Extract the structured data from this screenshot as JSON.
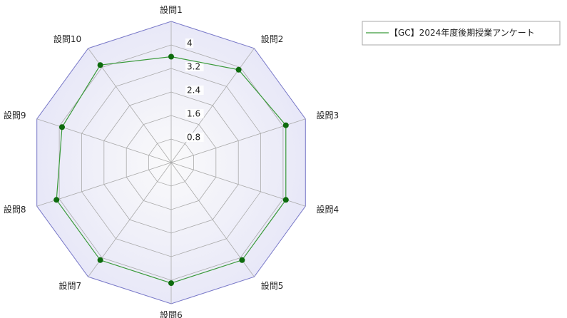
{
  "chart_data": {
    "type": "radar",
    "categories": [
      "設問1",
      "設問2",
      "設問3",
      "設問4",
      "設問5",
      "設問6",
      "設問7",
      "設問8",
      "設問9",
      "設問10"
    ],
    "series": [
      {
        "name": "【GC】2024年度後期授業アンケート",
        "values": [
          3.6,
          3.9,
          4.1,
          4.1,
          4.1,
          4.1,
          4.1,
          4.1,
          3.9,
          4.1
        ]
      }
    ],
    "rlim": [
      0,
      4.8
    ],
    "ticks": [
      0.8,
      1.6,
      2.4,
      3.2,
      4
    ],
    "tick_labels": [
      "0.8",
      "1.6",
      "2.4",
      "3.2",
      "4"
    ],
    "grid": true,
    "legend_position": "top-right",
    "colors": {
      "series_line": "#3a9a3a",
      "series_marker": "#0d6b0d",
      "grid_line": "#aaaaaa",
      "outer_fill": "#e8e8f8",
      "inner_fill": "#fafafa",
      "outer_border": "#7878c8"
    }
  }
}
